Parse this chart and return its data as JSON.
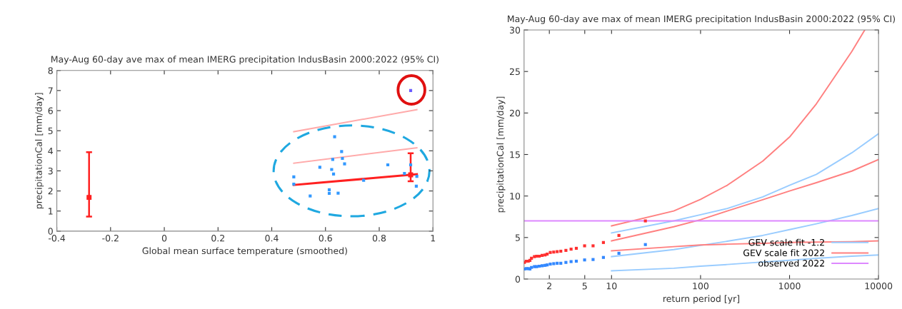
{
  "chart_data": [
    {
      "type": "scatter",
      "title": "May-Aug 60-day ave max of mean IMERG precipitation IndusBasin 2000:2022 (95% CI)",
      "xlabel": "Global mean surface temperature (smoothed)",
      "ylabel": "precipitationCal [mm/day]",
      "xlim": [
        -0.4,
        1
      ],
      "xticks": [
        -0.4,
        -0.2,
        0,
        0.2,
        0.4,
        0.6,
        0.8,
        1
      ],
      "ylim": [
        0,
        8
      ],
      "yticks": [
        0,
        1,
        2,
        3,
        4,
        5,
        6,
        7,
        8
      ],
      "grid": false,
      "legend": false,
      "series": [
        {
          "color": "#3399ff",
          "marker": "square",
          "x": [
            0.482,
            0.482,
            0.543,
            0.579,
            0.614,
            0.614,
            0.623,
            0.627,
            0.63,
            0.634,
            0.647,
            0.66,
            0.663,
            0.671,
            0.742,
            0.832,
            0.894,
            0.917,
            0.94,
            0.938
          ],
          "values": [
            2.7,
            2.34,
            1.75,
            3.18,
            2.06,
            1.88,
            3.07,
            3.57,
            2.84,
            4.7,
            1.89,
            3.96,
            3.62,
            3.35,
            2.53,
            3.3,
            2.87,
            3.3,
            2.73,
            2.24
          ]
        },
        {
          "color": "#6a5cff",
          "marker": "square",
          "x": [
            0.917
          ],
          "values": [
            7.0
          ]
        },
        {
          "type": "line",
          "color": "#ff2020",
          "x": [
            0.482,
            0.94
          ],
          "values": [
            2.3,
            2.83
          ]
        },
        {
          "type": "line",
          "color": "#ffaaaa",
          "x": [
            0.482,
            0.94
          ],
          "values": [
            3.38,
            4.15
          ]
        },
        {
          "type": "line",
          "color": "#ffaaaa",
          "x": [
            0.482,
            0.94
          ],
          "values": [
            4.95,
            6.05
          ]
        },
        {
          "color": "#ff2020",
          "marker": "square",
          "x": [
            -0.28,
            0.917
          ],
          "values": [
            1.68,
            2.8
          ],
          "errors": [
            [
              0.72,
              3.93
            ],
            [
              2.48,
              3.88
            ]
          ]
        }
      ]
    },
    {
      "type": "line",
      "title": "May-Aug 60-day ave max of mean IMERG precipitation IndusBasin 2000:2022 (95% CI)",
      "xlabel": "return period [yr]",
      "ylabel": "precipitationCal [mm/day]",
      "log": "x",
      "xlim": [
        1.04,
        10000
      ],
      "xticks": [
        2,
        5,
        10,
        100,
        1000,
        10000
      ],
      "ylim": [
        0,
        30
      ],
      "yticks": [
        0,
        5,
        10,
        15,
        20,
        25,
        30
      ],
      "grid": false,
      "legend": "bottom right",
      "series": [
        {
          "name": "GEV scale fit -1.2",
          "color": "#99ccff",
          "x": [
            10,
            50,
            100,
            200,
            500,
            1000,
            2000,
            5000,
            10000
          ],
          "values": [
            2.7,
            3.55,
            4.05,
            4.55,
            5.25,
            5.95,
            6.65,
            7.65,
            8.5
          ]
        },
        {
          "type": "line",
          "color": "#99ccff",
          "x": [
            10,
            50,
            100,
            200,
            500,
            1000,
            2000,
            5000,
            10000
          ],
          "values": [
            5.55,
            7.0,
            7.75,
            8.5,
            9.9,
            11.3,
            12.6,
            15.2,
            17.5
          ]
        },
        {
          "type": "line",
          "color": "#99ccff",
          "x": [
            10,
            50,
            100,
            200,
            500,
            1000,
            2000,
            5000,
            10000
          ],
          "values": [
            1.0,
            1.3,
            1.55,
            1.75,
            2.05,
            2.25,
            2.5,
            2.75,
            2.9
          ]
        },
        {
          "name": "GEV scale fit 2022",
          "color": "#ff8080",
          "x": [
            10,
            50,
            100,
            200,
            500,
            1000,
            2000,
            5000,
            10000
          ],
          "values": [
            4.6,
            6.3,
            7.15,
            8.2,
            9.55,
            10.6,
            11.6,
            13.0,
            14.4
          ]
        },
        {
          "type": "line",
          "color": "#ff8080",
          "x": [
            10,
            50,
            100,
            200,
            500,
            1000,
            2000,
            5000,
            7000
          ],
          "values": [
            6.4,
            8.2,
            9.6,
            11.3,
            14.2,
            17.1,
            21.1,
            27.4,
            30
          ]
        },
        {
          "type": "line",
          "color": "#ff8080",
          "x": [
            10,
            50,
            100,
            200,
            500,
            1000,
            2000,
            5000,
            10000
          ],
          "values": [
            3.4,
            3.9,
            4.1,
            4.2,
            4.3,
            4.4,
            4.45,
            4.5,
            4.6
          ]
        },
        {
          "type": "scatter",
          "color": "#ff3030",
          "marker": "square",
          "x": [
            1.05,
            1.1,
            1.16,
            1.21,
            1.26,
            1.36,
            1.44,
            1.54,
            1.66,
            1.79,
            1.89,
            2.05,
            2.24,
            2.45,
            2.69,
            3.07,
            3.51,
            4.02,
            4.98,
            6.2,
            8.1,
            12.1,
            24
          ],
          "values": [
            2.0,
            2.15,
            2.15,
            2.25,
            2.5,
            2.7,
            2.75,
            2.75,
            2.85,
            2.9,
            3.0,
            3.2,
            3.25,
            3.3,
            3.35,
            3.45,
            3.6,
            3.7,
            4.0,
            4.0,
            4.4,
            5.25,
            7.0
          ]
        },
        {
          "type": "scatter",
          "color": "#3388ff",
          "marker": "square",
          "x": [
            1.05,
            1.1,
            1.16,
            1.21,
            1.26,
            1.36,
            1.44,
            1.54,
            1.66,
            1.79,
            1.89,
            2.05,
            2.24,
            2.45,
            2.69,
            3.07,
            3.51,
            4.02,
            4.98,
            6.2,
            8.1,
            12.1,
            24
          ],
          "values": [
            1.2,
            1.25,
            1.25,
            1.2,
            1.4,
            1.5,
            1.5,
            1.55,
            1.6,
            1.65,
            1.7,
            1.8,
            1.85,
            1.9,
            1.9,
            2.0,
            2.1,
            2.15,
            2.3,
            2.35,
            2.6,
            3.1,
            4.15
          ]
        }
      ],
      "ref_lines": [
        {
          "axis": "y",
          "value": 7,
          "label": "observed 2022",
          "color": "#dd88ff"
        }
      ]
    }
  ]
}
